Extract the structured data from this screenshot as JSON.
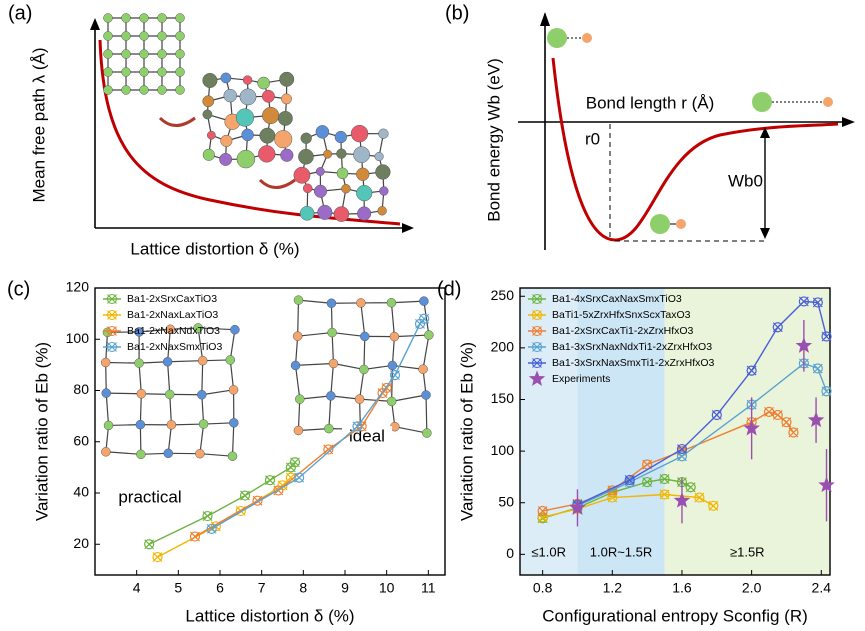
{
  "panels": {
    "a": {
      "label": "(a)",
      "ylabel": "Mean free path λ (Å)",
      "xlabel": "Lattice distortion δ (%)"
    },
    "b": {
      "label": "(b)",
      "ylabel": "Bond energy Wb (eV)",
      "xlabel": "Bond length r (Å)",
      "r0": "r0",
      "wb0": "Wb0"
    }
  },
  "chart_data": [
    {
      "type": "line",
      "panel_label": "(c)",
      "xlabel": "Lattice distortion δ (%)",
      "ylabel": "Variation ratio of Eb (%)",
      "xlim": [
        3.0,
        11.4
      ],
      "ylim": [
        8,
        120
      ],
      "xticks": [
        4,
        5,
        6,
        7,
        8,
        9,
        10,
        11
      ],
      "yticks": [
        20,
        40,
        60,
        80,
        100,
        120
      ],
      "inset_labels": [
        "practical",
        "ideal"
      ],
      "series": [
        {
          "name": "Ba1-2xSrxCaxTiO3",
          "color": "#6db33f",
          "x": [
            4.3,
            5.7,
            6.6,
            7.2,
            7.7,
            7.8
          ],
          "values": [
            20,
            31,
            39,
            45,
            50,
            52
          ]
        },
        {
          "name": "Ba1-2xNaxLaxTiO3",
          "color": "#f2b600",
          "x": [
            4.5,
            5.9,
            6.5,
            7.5,
            7.7
          ],
          "values": [
            15,
            27,
            33,
            43,
            46
          ]
        },
        {
          "name": "Ba1-2xNaxNdxTiO3",
          "color": "#ef7f32",
          "x": [
            5.4,
            6.9,
            7.4,
            8.6,
            9.4,
            9.9,
            10.0
          ],
          "values": [
            23,
            37,
            41,
            57,
            66,
            79,
            81
          ]
        },
        {
          "name": "Ba1-2xNaxSmxTiO3",
          "color": "#5ba3d0",
          "x": [
            5.8,
            7.9,
            9.3,
            10.2,
            10.8,
            10.9
          ],
          "values": [
            26,
            46,
            66,
            86,
            106,
            108
          ]
        }
      ]
    },
    {
      "type": "line",
      "panel_label": "(d)",
      "xlabel": "Configurational entropy Sconfig (R)",
      "ylabel": "Variation ratio of Eb (%)",
      "xlim": [
        0.67,
        2.45
      ],
      "ylim": [
        -20,
        258
      ],
      "xticks": [
        0.8,
        1.2,
        1.6,
        {
          "value": 2,
          "label": "2.0"
        },
        2.4
      ],
      "yticks": [
        0,
        50,
        100,
        150,
        200,
        250
      ],
      "region_bounds": [
        1.0,
        1.5
      ],
      "regions": [
        {
          "label": "≤1.0R",
          "color": "#dcedf8"
        },
        {
          "label": "1.0R~1.5R",
          "color": "#cde6f5"
        },
        {
          "label": "≥1.5R",
          "color": "#eaf4da"
        }
      ],
      "series": [
        {
          "name": "Ba1-4xSrxCaxNaxSmxTiO3",
          "color": "#6db33f",
          "x": [
            0.8,
            1.0,
            1.2,
            1.4,
            1.5,
            1.6,
            1.65
          ],
          "values": [
            35,
            45,
            60,
            70,
            73,
            70,
            65
          ]
        },
        {
          "name": "BaTi1-5xZrxHfxSnxScxTaxO3",
          "color": "#f2b600",
          "x": [
            0.8,
            1.0,
            1.2,
            1.5,
            1.7,
            1.78
          ],
          "values": [
            36,
            44,
            55,
            58,
            55,
            47
          ]
        },
        {
          "name": "Ba1-2xSrxCaxTi1-2xZrxHfxO3",
          "color": "#ef7f32",
          "x": [
            0.8,
            1.0,
            1.2,
            1.4,
            1.6,
            2.0,
            2.1,
            2.15,
            2.2,
            2.24
          ],
          "values": [
            42,
            49,
            62,
            87,
            100,
            128,
            138,
            135,
            128,
            118
          ]
        },
        {
          "name": "Ba1-3xSrxNaxNdxTi1-2xZrxHfxO3",
          "color": "#5ba3d0",
          "x": [
            1.0,
            1.3,
            1.6,
            2.0,
            2.3,
            2.38,
            2.43
          ],
          "values": [
            47,
            70,
            95,
            145,
            185,
            180,
            158
          ]
        },
        {
          "name": "Ba1-3xSrxNaxSmxTi1-2xZrxHfxO3",
          "color": "#4a5fd6",
          "x": [
            1.0,
            1.3,
            1.6,
            1.8,
            2.0,
            2.15,
            2.3,
            2.38,
            2.43
          ],
          "values": [
            48,
            72,
            102,
            135,
            178,
            220,
            245,
            244,
            211
          ]
        },
        {
          "name": "Experiments",
          "color": "#9b4fb0",
          "line": false,
          "marker": "star",
          "x": [
            1.0,
            1.6,
            2.0,
            2.3,
            2.37,
            2.43
          ],
          "values": [
            45,
            52,
            122,
            202,
            130,
            67
          ],
          "errors": [
            18,
            22,
            30,
            25,
            22,
            35
          ]
        }
      ]
    }
  ]
}
